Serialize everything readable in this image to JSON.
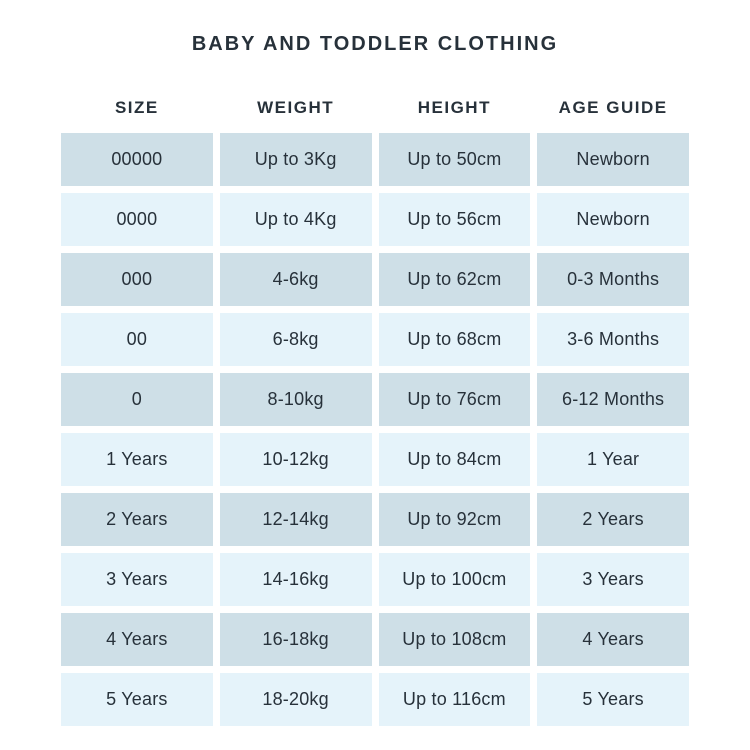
{
  "title": "BABY AND TODDLER CLOTHING",
  "colors": {
    "row_dark": "#cedfe7",
    "row_light": "#e5f3fa",
    "text": "#27313a",
    "background": "#ffffff"
  },
  "table": {
    "headers": {
      "size": "SIZE",
      "weight": "WEIGHT",
      "height": "HEIGHT",
      "age": "AGE GUIDE"
    },
    "rows": [
      {
        "size": "00000",
        "weight": "Up to 3Kg",
        "height": "Up to 50cm",
        "age": "Newborn"
      },
      {
        "size": "0000",
        "weight": "Up to 4Kg",
        "height": "Up to 56cm",
        "age": "Newborn"
      },
      {
        "size": "000",
        "weight": "4-6kg",
        "height": "Up to 62cm",
        "age": "0-3 Months"
      },
      {
        "size": "00",
        "weight": "6-8kg",
        "height": "Up to 68cm",
        "age": "3-6 Months"
      },
      {
        "size": "0",
        "weight": "8-10kg",
        "height": "Up to 76cm",
        "age": "6-12 Months"
      },
      {
        "size": "1 Years",
        "weight": "10-12kg",
        "height": "Up to 84cm",
        "age": "1 Year"
      },
      {
        "size": "2 Years",
        "weight": "12-14kg",
        "height": "Up to 92cm",
        "age": "2 Years"
      },
      {
        "size": "3 Years",
        "weight": "14-16kg",
        "height": "Up to 100cm",
        "age": "3 Years"
      },
      {
        "size": "4 Years",
        "weight": "16-18kg",
        "height": "Up to 108cm",
        "age": "4 Years"
      },
      {
        "size": "5 Years",
        "weight": "18-20kg",
        "height": "Up to 116cm",
        "age": "5 Years"
      }
    ]
  },
  "chart_data": {
    "type": "table",
    "title": "BABY AND TODDLER CLOTHING",
    "columns": [
      "SIZE",
      "WEIGHT",
      "HEIGHT",
      "AGE GUIDE"
    ],
    "rows": [
      [
        "00000",
        "Up to 3Kg",
        "Up to 50cm",
        "Newborn"
      ],
      [
        "0000",
        "Up to 4Kg",
        "Up to 56cm",
        "Newborn"
      ],
      [
        "000",
        "4-6kg",
        "Up to 62cm",
        "0-3 Months"
      ],
      [
        "00",
        "6-8kg",
        "Up to 68cm",
        "3-6 Months"
      ],
      [
        "0",
        "8-10kg",
        "Up to 76cm",
        "6-12 Months"
      ],
      [
        "1 Years",
        "10-12kg",
        "Up to 84cm",
        "1 Year"
      ],
      [
        "2 Years",
        "12-14kg",
        "Up to 92cm",
        "2 Years"
      ],
      [
        "3 Years",
        "14-16kg",
        "Up to 100cm",
        "3 Years"
      ],
      [
        "4 Years",
        "16-18kg",
        "Up to 108cm",
        "4 Years"
      ],
      [
        "5 Years",
        "18-20kg",
        "Up to 116cm",
        "5 Years"
      ]
    ],
    "layout_hints": {
      "row_striping": "odd rows #cedfe7, even rows #e5f3fa, white gutters between all cells",
      "alignment": "all cells center-aligned"
    }
  }
}
